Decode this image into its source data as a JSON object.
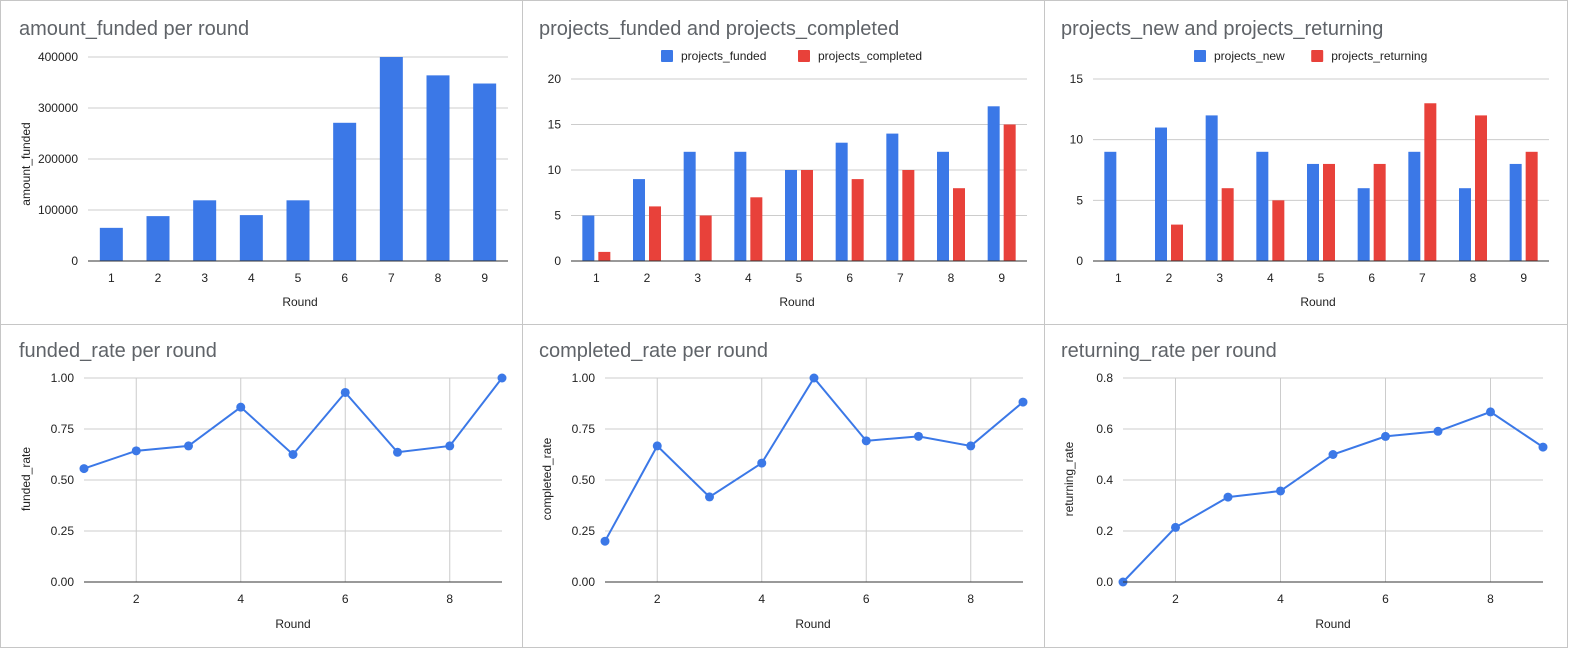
{
  "colors": {
    "blue": "#3b78e7",
    "red": "#e8413a",
    "grid": "#cccccc",
    "axis": "#333333"
  },
  "chart_data": [
    {
      "type": "bar",
      "title": "amount_funded per round",
      "xlabel": "Round",
      "ylabel": "amount_funded",
      "categories": [
        "1",
        "2",
        "3",
        "4",
        "5",
        "6",
        "7",
        "8",
        "9"
      ],
      "series": [
        {
          "values": [
            65000,
            88000,
            119000,
            90000,
            119000,
            271000,
            400000,
            364000,
            348000
          ]
        }
      ],
      "ylim": [
        0,
        400000
      ],
      "yticks": [
        "0",
        "100000",
        "200000",
        "300000",
        "400000"
      ],
      "grid": true,
      "legend": "none"
    },
    {
      "type": "bar",
      "title": "projects_funded and projects_completed",
      "xlabel": "Round",
      "ylabel": "",
      "categories": [
        "1",
        "2",
        "3",
        "4",
        "5",
        "6",
        "7",
        "8",
        "9"
      ],
      "series": [
        {
          "name": "projects_funded",
          "values": [
            5,
            9,
            12,
            12,
            10,
            13,
            14,
            12,
            17
          ]
        },
        {
          "name": "projects_completed",
          "values": [
            1,
            6,
            5,
            7,
            10,
            9,
            10,
            8,
            15
          ]
        }
      ],
      "ylim": [
        0,
        20
      ],
      "yticks": [
        "0",
        "5",
        "10",
        "15",
        "20"
      ],
      "grid": true,
      "legend": "top"
    },
    {
      "type": "bar",
      "title": "projects_new and projects_returning",
      "xlabel": "Round",
      "ylabel": "",
      "categories": [
        "1",
        "2",
        "3",
        "4",
        "5",
        "6",
        "7",
        "8",
        "9"
      ],
      "series": [
        {
          "name": "projects_new",
          "values": [
            9,
            11,
            12,
            9,
            8,
            6,
            9,
            6,
            8
          ]
        },
        {
          "name": "projects_returning",
          "values": [
            0,
            3,
            6,
            5,
            8,
            8,
            13,
            12,
            9
          ]
        }
      ],
      "ylim": [
        0,
        15
      ],
      "yticks": [
        "0",
        "5",
        "10",
        "15"
      ],
      "grid": true,
      "legend": "top"
    },
    {
      "type": "line",
      "title": "funded_rate per round",
      "xlabel": "Round",
      "ylabel": "funded_rate",
      "x": [
        1,
        2,
        3,
        4,
        5,
        6,
        7,
        8,
        9
      ],
      "series": [
        {
          "values": [
            0.556,
            0.643,
            0.667,
            0.857,
            0.625,
            0.929,
            0.636,
            0.667,
            1.0
          ]
        }
      ],
      "xlim": [
        1,
        9
      ],
      "xticks": [
        "2",
        "4",
        "6",
        "8"
      ],
      "ylim": [
        0,
        1
      ],
      "yticks": [
        "0.00",
        "0.25",
        "0.50",
        "0.75",
        "1.00"
      ],
      "grid": true,
      "legend": "none"
    },
    {
      "type": "line",
      "title": "completed_rate per round",
      "xlabel": "Round",
      "ylabel": "completed_rate",
      "x": [
        1,
        2,
        3,
        4,
        5,
        6,
        7,
        8,
        9
      ],
      "series": [
        {
          "values": [
            0.2,
            0.667,
            0.417,
            0.583,
            1.0,
            0.692,
            0.714,
            0.667,
            0.882
          ]
        }
      ],
      "xlim": [
        1,
        9
      ],
      "xticks": [
        "2",
        "4",
        "6",
        "8"
      ],
      "ylim": [
        0,
        1
      ],
      "yticks": [
        "0.00",
        "0.25",
        "0.50",
        "0.75",
        "1.00"
      ],
      "grid": true,
      "legend": "none"
    },
    {
      "type": "line",
      "title": "returning_rate per round",
      "xlabel": "Round",
      "ylabel": "returning_rate",
      "x": [
        1,
        2,
        3,
        4,
        5,
        6,
        7,
        8,
        9
      ],
      "series": [
        {
          "values": [
            0.0,
            0.214,
            0.333,
            0.357,
            0.5,
            0.571,
            0.591,
            0.667,
            0.529
          ]
        }
      ],
      "xlim": [
        1,
        9
      ],
      "xticks": [
        "2",
        "4",
        "6",
        "8"
      ],
      "ylim": [
        0,
        0.8
      ],
      "yticks": [
        "0.0",
        "0.2",
        "0.4",
        "0.6",
        "0.8"
      ],
      "grid": true,
      "legend": "none"
    }
  ]
}
